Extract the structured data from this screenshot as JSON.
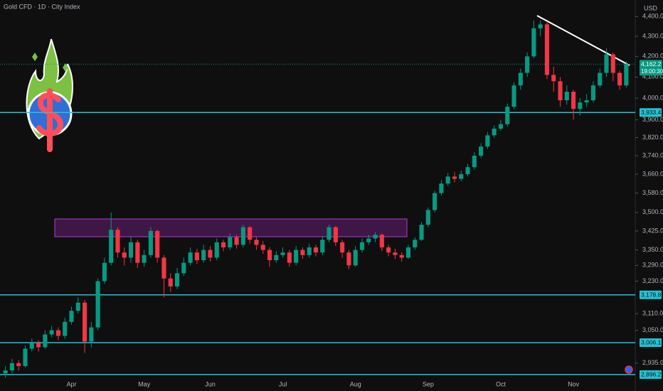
{
  "chart_data": {
    "type": "candlestick",
    "title": "Gold CFD · 1D · City Index",
    "currency": "USD",
    "log_scale": true,
    "grid": false,
    "up_color": "#089981",
    "down_color": "#f23645",
    "level_color": "#22c3d6",
    "categories": [
      null,
      null,
      null,
      null,
      null,
      null,
      null,
      null,
      null,
      null,
      "Apr",
      null,
      null,
      null,
      null,
      null,
      null,
      null,
      null,
      null,
      null,
      "May",
      null,
      null,
      null,
      null,
      null,
      null,
      null,
      null,
      null,
      "Jun",
      null,
      null,
      null,
      null,
      null,
      null,
      null,
      null,
      null,
      null,
      "Jul",
      null,
      null,
      null,
      null,
      null,
      null,
      null,
      null,
      null,
      null,
      "Aug",
      null,
      null,
      null,
      null,
      null,
      null,
      null,
      null,
      null,
      null,
      "Sep",
      null,
      null,
      null,
      null,
      null,
      null,
      null,
      null,
      null,
      null,
      "Oct",
      null,
      null,
      null,
      null,
      null,
      null,
      null,
      null,
      null,
      null,
      "Nov",
      null,
      null,
      null,
      null,
      null,
      null,
      null,
      null
    ],
    "open": [
      2900,
      2910,
      2935,
      2925,
      2985,
      3005,
      2990,
      3035,
      3050,
      3030,
      3080,
      3120,
      3150,
      3010,
      3060,
      3230,
      3300,
      3430,
      3340,
      3320,
      3380,
      3300,
      3330,
      3425,
      3320,
      3240,
      3210,
      3260,
      3300,
      3340,
      3310,
      3350,
      3320,
      3380,
      3360,
      3400,
      3370,
      3440,
      3390,
      3370,
      3350,
      3310,
      3330,
      3340,
      3300,
      3350,
      3330,
      3360,
      3340,
      3390,
      3440,
      3380,
      3340,
      3290,
      3350,
      3380,
      3395,
      3410,
      3360,
      3340,
      3330,
      3320,
      3360,
      3390,
      3450,
      3510,
      3580,
      3620,
      3650,
      3640,
      3660,
      3690,
      3740,
      3780,
      3830,
      3860,
      3880,
      3960,
      4060,
      4120,
      4200,
      4340,
      4360,
      4110,
      4080,
      3990,
      4030,
      3950,
      3980,
      3990,
      4060,
      4120,
      4210,
      4120,
      4060
    ],
    "high": [
      2925,
      2950,
      2945,
      2995,
      3020,
      3015,
      3050,
      3065,
      3060,
      3095,
      3135,
      3170,
      3160,
      3080,
      3240,
      3320,
      3500,
      3440,
      3360,
      3400,
      3390,
      3350,
      3440,
      3430,
      3330,
      3260,
      3280,
      3320,
      3360,
      3355,
      3370,
      3365,
      3395,
      3390,
      3415,
      3410,
      3450,
      3445,
      3400,
      3385,
      3360,
      3345,
      3360,
      3350,
      3365,
      3360,
      3375,
      3370,
      3405,
      3450,
      3445,
      3390,
      3350,
      3365,
      3395,
      3410,
      3420,
      3415,
      3370,
      3355,
      3340,
      3370,
      3400,
      3460,
      3520,
      3590,
      3635,
      3665,
      3670,
      3675,
      3705,
      3755,
      3795,
      3845,
      3875,
      3900,
      3975,
      4075,
      4140,
      4220,
      4380,
      4380,
      4370,
      4150,
      4100,
      4060,
      4040,
      4000,
      4020,
      4080,
      4140,
      4240,
      4220,
      4130,
      4175
    ],
    "low": [
      2885,
      2900,
      2910,
      2920,
      2975,
      2975,
      2985,
      3025,
      3015,
      3020,
      3070,
      3110,
      2970,
      2990,
      3050,
      3220,
      3290,
      3320,
      3290,
      3300,
      3280,
      3285,
      3320,
      3300,
      3170,
      3190,
      3200,
      3250,
      3290,
      3295,
      3300,
      3305,
      3310,
      3345,
      3350,
      3355,
      3360,
      3375,
      3350,
      3335,
      3285,
      3300,
      3320,
      3285,
      3290,
      3315,
      3320,
      3325,
      3330,
      3380,
      3365,
      3320,
      3275,
      3285,
      3340,
      3370,
      3380,
      3345,
      3325,
      3315,
      3305,
      3315,
      3350,
      3385,
      3440,
      3500,
      3570,
      3610,
      3625,
      3630,
      3650,
      3680,
      3730,
      3770,
      3820,
      3850,
      3870,
      3950,
      4040,
      4100,
      4190,
      4300,
      4090,
      4030,
      3960,
      3970,
      3900,
      3920,
      3960,
      3980,
      4050,
      4100,
      4080,
      4040,
      4050
    ],
    "close": [
      2910,
      2935,
      2925,
      2985,
      3005,
      2990,
      3035,
      3050,
      3030,
      3080,
      3120,
      3150,
      3010,
      3060,
      3230,
      3300,
      3430,
      3340,
      3320,
      3380,
      3300,
      3330,
      3425,
      3320,
      3240,
      3210,
      3260,
      3300,
      3340,
      3310,
      3350,
      3320,
      3380,
      3360,
      3400,
      3370,
      3440,
      3390,
      3370,
      3350,
      3310,
      3330,
      3340,
      3300,
      3350,
      3330,
      3360,
      3340,
      3390,
      3440,
      3380,
      3340,
      3290,
      3350,
      3380,
      3395,
      3410,
      3360,
      3340,
      3330,
      3320,
      3360,
      3390,
      3450,
      3510,
      3580,
      3620,
      3650,
      3640,
      3660,
      3690,
      3740,
      3780,
      3830,
      3860,
      3880,
      3960,
      4060,
      4120,
      4200,
      4340,
      4360,
      4110,
      4080,
      3990,
      4030,
      3950,
      3980,
      3990,
      4060,
      4120,
      4210,
      4120,
      4060,
      4162.2
    ],
    "ylim": [
      2841,
      4486
    ],
    "yticks": [
      {
        "value": 2935,
        "label": "2,935.0"
      },
      {
        "value": 3050,
        "label": "3,050.0"
      },
      {
        "value": 3110,
        "label": "3,110.0"
      },
      {
        "value": 3230,
        "label": "3,230.0"
      },
      {
        "value": 3290,
        "label": "3,290.0"
      },
      {
        "value": 3350,
        "label": "3,350.0"
      },
      {
        "value": 3425,
        "label": "3,425.0"
      },
      {
        "value": 3500,
        "label": "3,500.0"
      },
      {
        "value": 3580,
        "label": "3,580.0"
      },
      {
        "value": 3660,
        "label": "3,660.0"
      },
      {
        "value": 3740,
        "label": "3,740.0"
      },
      {
        "value": 3820,
        "label": "3,820.0"
      },
      {
        "value": 3900,
        "label": "3,900.0"
      },
      {
        "value": 4000,
        "label": "4,000.0"
      },
      {
        "value": 4100,
        "label": "4,100.0"
      },
      {
        "value": 4200,
        "label": "4,200.0"
      },
      {
        "value": 4300,
        "label": "4,300.0"
      },
      {
        "value": 4400,
        "label": "4,400.0"
      }
    ],
    "price_levels": [
      {
        "value": 3933.4,
        "label": "3,933.4"
      },
      {
        "value": 3178.8,
        "label": "3,178.8"
      },
      {
        "value": 3006.1,
        "label": "3,006.1"
      },
      {
        "value": 2896.2,
        "label": "2,896.2"
      }
    ],
    "last_price": {
      "value": 4162.2,
      "label": "4,162.2",
      "countdown": "19:00:30"
    }
  }
}
